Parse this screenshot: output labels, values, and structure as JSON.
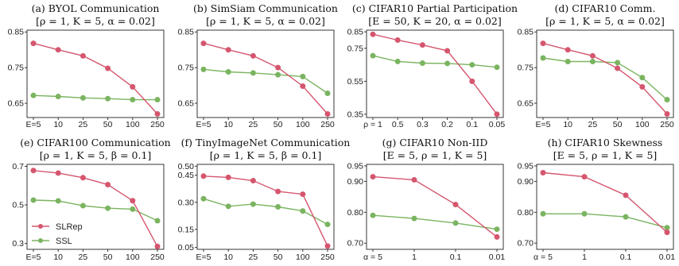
{
  "colors": {
    "slrep": "#d5566e",
    "ssl": "#7ab460"
  },
  "legend": {
    "placement": "lower-left",
    "panel": 4,
    "entries": [
      "SLRep",
      "SSL"
    ]
  },
  "chart_data": [
    {
      "type": "line",
      "title": "(a) BYOL Communication",
      "subtitle": "[ρ = 1, K = 5, α = 0.02]",
      "categories": [
        "E=5",
        "10",
        "25",
        "50",
        "100",
        "250"
      ],
      "ylim": [
        0.61,
        0.855
      ],
      "yticks": [
        "0.85",
        "0.75",
        "0.65"
      ],
      "series": [
        {
          "name": "SLRep",
          "values": [
            0.818,
            0.8,
            0.783,
            0.748,
            0.696,
            0.62
          ]
        },
        {
          "name": "SSL",
          "values": [
            0.672,
            0.669,
            0.665,
            0.663,
            0.66,
            0.66
          ]
        }
      ]
    },
    {
      "type": "line",
      "title": "(b) SimSiam Communication",
      "subtitle": "[ρ = 1, K = 5, α = 0.02]",
      "categories": [
        "E=5",
        "10",
        "25",
        "50",
        "100",
        "250"
      ],
      "ylim": [
        0.61,
        0.855
      ],
      "yticks": [
        "0.85",
        "0.75",
        "0.65"
      ],
      "series": [
        {
          "name": "SLRep",
          "values": [
            0.818,
            0.8,
            0.783,
            0.75,
            0.698,
            0.62
          ]
        },
        {
          "name": "SSL",
          "values": [
            0.745,
            0.738,
            0.735,
            0.73,
            0.725,
            0.678
          ]
        }
      ]
    },
    {
      "type": "line",
      "title": "(c) CIFAR10 Partial Participation",
      "subtitle": "[E = 50, K = 20, α = 0.02]",
      "categories": [
        "ρ = 1",
        "0.5",
        "0.3",
        "0.2",
        "0.1",
        "0.05"
      ],
      "ylim": [
        0.33,
        0.86
      ],
      "yticks": [
        "0.85",
        "0.75",
        "0.55",
        "0.35"
      ],
      "series": [
        {
          "name": "SLRep",
          "values": [
            0.835,
            0.8,
            0.77,
            0.735,
            0.55,
            0.35
          ]
        },
        {
          "name": "SSL",
          "values": [
            0.705,
            0.67,
            0.66,
            0.658,
            0.65,
            0.635
          ]
        }
      ]
    },
    {
      "type": "line",
      "title": "(d) CIFAR10 Comm.",
      "subtitle": "[ρ = 1, K = 5, α = 0.02]",
      "categories": [
        "E=5",
        "10",
        "25",
        "50",
        "100",
        "250"
      ],
      "ylim": [
        0.61,
        0.855
      ],
      "yticks": [
        "0.85",
        "0.75",
        "0.65"
      ],
      "series": [
        {
          "name": "SLRep",
          "values": [
            0.818,
            0.8,
            0.783,
            0.748,
            0.696,
            0.62
          ]
        },
        {
          "name": "SSL",
          "values": [
            0.777,
            0.767,
            0.767,
            0.764,
            0.722,
            0.66
          ]
        }
      ]
    },
    {
      "type": "line",
      "title": "(e) CIFAR100 Communication",
      "subtitle": "[ρ = 1, K = 5, β = 0.1]",
      "categories": [
        "E=5",
        "10",
        "25",
        "50",
        "100",
        "250"
      ],
      "ylim": [
        0.27,
        0.71
      ],
      "yticks": [
        "0.7",
        "0.5",
        "0.3"
      ],
      "series": [
        {
          "name": "SLRep",
          "values": [
            0.678,
            0.665,
            0.641,
            0.605,
            0.522,
            0.285
          ]
        },
        {
          "name": "SSL",
          "values": [
            0.525,
            0.521,
            0.496,
            0.483,
            0.478,
            0.418
          ]
        }
      ]
    },
    {
      "type": "line",
      "title": "(f) TinyImageNet Communication",
      "subtitle": "[ρ = 1, K = 5, β = 0.1]",
      "categories": [
        "E=5",
        "10",
        "25",
        "50",
        "100",
        "250"
      ],
      "ylim": [
        0.04,
        0.51
      ],
      "yticks": [
        "0.50",
        "0.45",
        "0.30",
        "0.15",
        "0.05"
      ],
      "series": [
        {
          "name": "SLRep",
          "values": [
            0.445,
            0.438,
            0.42,
            0.36,
            0.345,
            0.058
          ]
        },
        {
          "name": "SSL",
          "values": [
            0.32,
            0.278,
            0.29,
            0.275,
            0.252,
            0.178
          ]
        }
      ]
    },
    {
      "type": "line",
      "title": "(g) CIFAR10 Non-IID",
      "subtitle": "[E = 5, ρ = 1, K = 5]",
      "categories": [
        "α = 5",
        "1",
        "0.1",
        "0.01"
      ],
      "ylim": [
        0.68,
        0.955
      ],
      "yticks": [
        "0.95",
        "0.90",
        "0.80",
        "0.70"
      ],
      "series": [
        {
          "name": "SLRep",
          "values": [
            0.915,
            0.905,
            0.825,
            0.72
          ]
        },
        {
          "name": "SSL",
          "values": [
            0.79,
            0.78,
            0.765,
            0.745
          ]
        }
      ]
    },
    {
      "type": "line",
      "title": "(h) CIFAR10 Skewness",
      "subtitle": "[E = 5, ρ = 1, K = 5]",
      "categories": [
        "α = 5",
        "1",
        "0.1",
        "0.01"
      ],
      "ylim": [
        0.68,
        0.955
      ],
      "yticks": [
        "0.95",
        "0.90",
        "0.80",
        "0.70"
      ],
      "series": [
        {
          "name": "SLRep",
          "values": [
            0.928,
            0.915,
            0.855,
            0.735
          ]
        },
        {
          "name": "SSL",
          "values": [
            0.795,
            0.795,
            0.785,
            0.75
          ]
        }
      ]
    }
  ]
}
